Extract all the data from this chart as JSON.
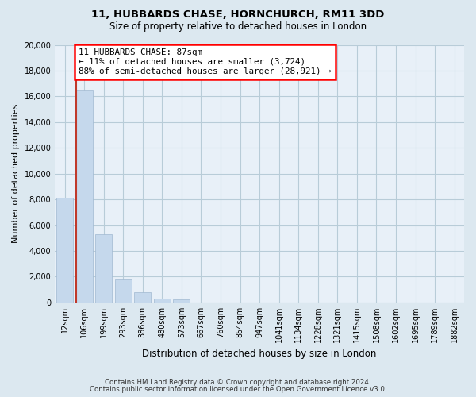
{
  "title_line1": "11, HUBBARDS CHASE, HORNCHURCH, RM11 3DD",
  "title_line2": "Size of property relative to detached houses in London",
  "xlabel": "Distribution of detached houses by size in London",
  "ylabel": "Number of detached properties",
  "bar_labels": [
    "12sqm",
    "106sqm",
    "199sqm",
    "293sqm",
    "386sqm",
    "480sqm",
    "573sqm",
    "667sqm",
    "760sqm",
    "854sqm",
    "947sqm",
    "1041sqm",
    "1134sqm",
    "1228sqm",
    "1321sqm",
    "1415sqm",
    "1508sqm",
    "1602sqm",
    "1695sqm",
    "1789sqm",
    "1882sqm"
  ],
  "bar_values": [
    8150,
    16500,
    5300,
    1750,
    800,
    300,
    220,
    0,
    0,
    0,
    0,
    0,
    0,
    0,
    0,
    0,
    0,
    0,
    0,
    0,
    0
  ],
  "bar_color": "#c5d8ec",
  "bar_edge_color": "#a0b8d0",
  "annotation_box_text": "11 HUBBARDS CHASE: 87sqm\n← 11% of detached houses are smaller (3,724)\n88% of semi-detached houses are larger (28,921) →",
  "annotation_box_color": "white",
  "annotation_box_edge_color": "red",
  "property_line_color": "#c0392b",
  "ylim": [
    0,
    20000
  ],
  "yticks": [
    0,
    2000,
    4000,
    6000,
    8000,
    10000,
    12000,
    14000,
    16000,
    18000,
    20000
  ],
  "footer_line1": "Contains HM Land Registry data © Crown copyright and database right 2024.",
  "footer_line2": "Contains public sector information licensed under the Open Government Licence v3.0.",
  "bg_color": "#dce8f0",
  "plot_bg_color": "#e8f0f8",
  "grid_color": "#b8ccd8",
  "title_fontsize": 9.5,
  "subtitle_fontsize": 8.5
}
